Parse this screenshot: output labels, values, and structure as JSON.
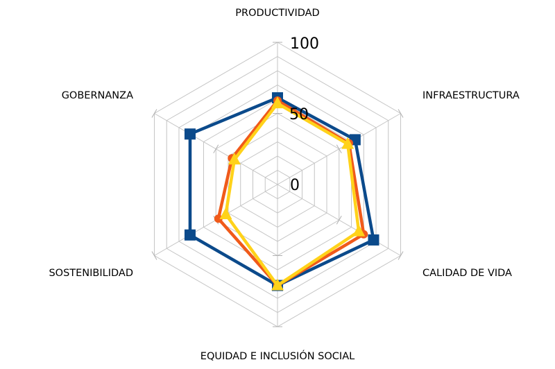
{
  "chart_data": {
    "type": "radar",
    "categories": [
      "PRODUCTIVIDAD",
      "INFRAESTRUCTURA",
      "CALIDAD DE VIDA",
      "EQUIDAD E INCLUSIÓN SOCIAL",
      "SOSTENIBILIDAD",
      "GOBERNANZA"
    ],
    "rlim": [
      0,
      100
    ],
    "rticks": [
      0,
      50,
      100
    ],
    "rtick_labels": [
      "0",
      "50",
      "100"
    ],
    "grid": true,
    "legend": "none",
    "series": [
      {
        "color": "#0b4a8b",
        "marker": "square",
        "values": [
          61,
          63,
          78,
          71,
          71,
          71
        ]
      },
      {
        "color": "#f05a1a",
        "marker": "circle",
        "values": [
          59,
          58,
          70,
          71,
          48,
          37
        ]
      },
      {
        "color": "#ffd21a",
        "marker": "triangle",
        "values": [
          57,
          57,
          66,
          71,
          42,
          35
        ]
      }
    ]
  }
}
